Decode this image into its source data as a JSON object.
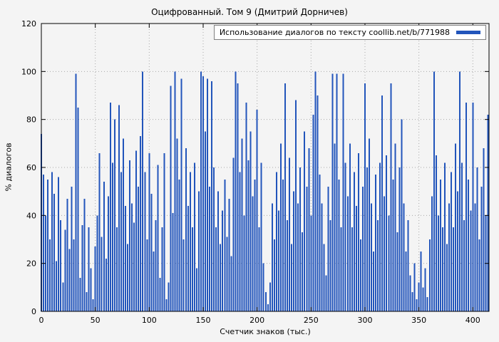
{
  "title": "Оцифрованный. Том 9 (Дмитрий Дорничев)",
  "legend": {
    "label": "Использование диалогов по тексту coollib.net/b/771988"
  },
  "axes": {
    "ylabel": "% диалогов",
    "xlabel": "Счетчик знаков (тыс.)"
  },
  "colors": {
    "bar": "#2255bb",
    "grid": "#a8a8a8",
    "border": "#000000",
    "background": "#f4f4f4"
  },
  "chart_data": {
    "type": "bar",
    "title": "Оцифрованный. Том 9 (Дмитрий Дорничев)",
    "series_label": "Использование диалогов по тексту coollib.net/b/771988",
    "xlabel": "Счетчик знаков (тыс.)",
    "ylabel": "% диалогов",
    "xlim": [
      0,
      415
    ],
    "ylim": [
      0,
      120
    ],
    "xticks": [
      0,
      50,
      100,
      150,
      200,
      250,
      300,
      350,
      400
    ],
    "yticks": [
      0,
      20,
      40,
      60,
      80,
      100,
      120
    ],
    "grid": true,
    "legend_position": "top-right",
    "bar_color": "#2255bb",
    "x_start": 0,
    "x_step": 2,
    "values": [
      74,
      57,
      40,
      55,
      30,
      58,
      49,
      21,
      56,
      38,
      12,
      34,
      47,
      26,
      52,
      30,
      99,
      85,
      14,
      36,
      47,
      8,
      35,
      18,
      5,
      27,
      40,
      66,
      31,
      54,
      22,
      48,
      87,
      62,
      80,
      35,
      86,
      58,
      72,
      44,
      28,
      63,
      45,
      37,
      67,
      52,
      73,
      100,
      58,
      30,
      66,
      49,
      25,
      38,
      61,
      14,
      35,
      66,
      5,
      12,
      94,
      41,
      100,
      72,
      55,
      97,
      30,
      68,
      44,
      58,
      35,
      62,
      18,
      50,
      100,
      98,
      75,
      97,
      52,
      96,
      60,
      35,
      50,
      28,
      42,
      55,
      31,
      47,
      23,
      64,
      100,
      95,
      58,
      72,
      40,
      87,
      63,
      75,
      48,
      55,
      84,
      35,
      62,
      20,
      8,
      3,
      12,
      45,
      30,
      58,
      42,
      70,
      55,
      95,
      38,
      64,
      28,
      50,
      88,
      45,
      60,
      33,
      75,
      52,
      68,
      40,
      82,
      100,
      90,
      57,
      45,
      28,
      15,
      52,
      38,
      99,
      70,
      99,
      55,
      35,
      99,
      62,
      48,
      70,
      35,
      58,
      44,
      66,
      30,
      52,
      95,
      60,
      72,
      45,
      25,
      57,
      38,
      62,
      90,
      48,
      65,
      40,
      95,
      55,
      70,
      33,
      60,
      80,
      45,
      25,
      38,
      15,
      8,
      20,
      5,
      12,
      25,
      10,
      18,
      6,
      30,
      48,
      100,
      65,
      40,
      55,
      35,
      62,
      28,
      45,
      58,
      35,
      70,
      50,
      100,
      62,
      38,
      87,
      55,
      42,
      87,
      45,
      60,
      30,
      52,
      68,
      40,
      82
    ]
  }
}
